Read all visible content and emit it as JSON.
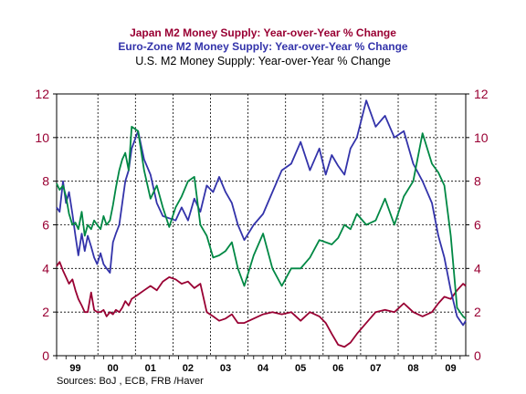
{
  "colors": {
    "japan": "#990033",
    "euro": "#3333aa",
    "us": "#008844",
    "axis_label": "#990033",
    "euro_title": "#3333aa"
  },
  "chart_data": {
    "type": "line",
    "titles": [
      "Japan M2 Money Supply: Year-over-Year % Change",
      "Euro-Zone M2 Money Supply: Year-over-Year % Change",
      "U.S. M2 Money Supply: Year-over-Year % Change"
    ],
    "xlim": [
      1999.0,
      2009.9
    ],
    "ylim": [
      0,
      12
    ],
    "yticks": [
      0,
      2,
      4,
      6,
      8,
      10,
      12
    ],
    "xtick_labels": [
      "99",
      "00",
      "01",
      "02",
      "03",
      "04",
      "05",
      "06",
      "07",
      "08",
      "09"
    ],
    "xtick_positions": [
      1999.5,
      2000.5,
      2001.5,
      2002.5,
      2003.5,
      2004.5,
      2005.5,
      2006.5,
      2007.5,
      2008.5,
      2009.5
    ],
    "vgrid": [
      2000.1,
      2001.1,
      2002.1,
      2003.1,
      2004.1,
      2005.1,
      2006.1,
      2007.1,
      2008.1,
      2009.1
    ],
    "source": "Sources:  BoJ , ECB, FRB /Haver",
    "series": [
      {
        "name": "Japan M2 Money Supply: Year-over-Year % Change",
        "color": "#990033",
        "x": [
          1999.0,
          1999.08,
          1999.17,
          1999.25,
          1999.33,
          1999.42,
          1999.5,
          1999.58,
          1999.67,
          1999.75,
          1999.83,
          1999.92,
          2000.0,
          2000.08,
          2000.17,
          2000.25,
          2000.33,
          2000.42,
          2000.5,
          2000.58,
          2000.67,
          2000.75,
          2000.83,
          2000.92,
          2001.0,
          2001.17,
          2001.33,
          2001.5,
          2001.67,
          2001.83,
          2002.0,
          2002.17,
          2002.33,
          2002.5,
          2002.67,
          2002.83,
          2003.0,
          2003.17,
          2003.33,
          2003.5,
          2003.67,
          2003.83,
          2004.0,
          2004.25,
          2004.5,
          2004.75,
          2005.0,
          2005.25,
          2005.5,
          2005.75,
          2006.0,
          2006.17,
          2006.33,
          2006.5,
          2006.67,
          2006.83,
          2007.0,
          2007.25,
          2007.5,
          2007.75,
          2008.0,
          2008.25,
          2008.5,
          2008.75,
          2009.0,
          2009.17,
          2009.33,
          2009.5,
          2009.67,
          2009.83,
          2009.9
        ],
        "y": [
          4.1,
          4.3,
          3.9,
          3.6,
          3.3,
          3.5,
          3.0,
          2.6,
          2.3,
          2.0,
          2.0,
          2.9,
          2.1,
          2.0,
          2.0,
          2.1,
          1.8,
          2.0,
          1.9,
          2.1,
          2.0,
          2.2,
          2.5,
          2.3,
          2.6,
          2.8,
          3.0,
          3.2,
          3.0,
          3.4,
          3.6,
          3.5,
          3.3,
          3.4,
          3.1,
          3.3,
          2.0,
          1.8,
          1.6,
          1.7,
          1.9,
          1.5,
          1.5,
          1.7,
          1.9,
          2.0,
          1.9,
          2.0,
          1.6,
          2.0,
          1.8,
          1.5,
          1.0,
          0.5,
          0.4,
          0.6,
          1.0,
          1.5,
          2.0,
          2.1,
          2.0,
          2.4,
          2.0,
          1.8,
          2.0,
          2.4,
          2.7,
          2.6,
          3.0,
          3.3,
          3.2
        ]
      },
      {
        "name": "Euro-Zone M2 Money Supply: Year-over-Year % Change",
        "color": "#3333aa",
        "x": [
          1999.0,
          1999.08,
          1999.17,
          1999.25,
          1999.33,
          1999.42,
          1999.5,
          1999.58,
          1999.67,
          1999.75,
          1999.83,
          1999.92,
          2000.0,
          2000.08,
          2000.17,
          2000.25,
          2000.33,
          2000.42,
          2000.5,
          2000.58,
          2000.67,
          2000.75,
          2000.83,
          2000.92,
          2001.0,
          2001.17,
          2001.33,
          2001.5,
          2001.67,
          2001.83,
          2002.0,
          2002.17,
          2002.33,
          2002.5,
          2002.67,
          2002.83,
          2003.0,
          2003.17,
          2003.33,
          2003.5,
          2003.67,
          2003.83,
          2004.0,
          2004.25,
          2004.5,
          2004.75,
          2005.0,
          2005.25,
          2005.5,
          2005.75,
          2006.0,
          2006.17,
          2006.33,
          2006.5,
          2006.67,
          2006.83,
          2007.0,
          2007.25,
          2007.5,
          2007.75,
          2008.0,
          2008.25,
          2008.5,
          2008.75,
          2009.0,
          2009.17,
          2009.33,
          2009.5,
          2009.67,
          2009.83,
          2009.9
        ],
        "y": [
          6.8,
          6.6,
          8.0,
          7.0,
          7.5,
          6.5,
          5.5,
          4.6,
          5.6,
          4.8,
          5.5,
          5.0,
          4.5,
          4.2,
          4.7,
          4.2,
          4.0,
          3.8,
          5.2,
          5.6,
          6.0,
          7.0,
          8.0,
          8.5,
          9.5,
          10.3,
          9.0,
          8.3,
          7.0,
          6.4,
          6.3,
          6.2,
          6.8,
          6.2,
          7.2,
          6.6,
          7.8,
          7.5,
          8.2,
          7.5,
          7.0,
          6.0,
          5.3,
          6.0,
          6.5,
          7.5,
          8.5,
          8.8,
          9.8,
          8.5,
          9.5,
          8.3,
          9.2,
          8.7,
          8.3,
          9.5,
          10.0,
          11.7,
          10.5,
          11.0,
          10.0,
          10.3,
          8.8,
          8.0,
          7.0,
          5.5,
          4.5,
          3.0,
          1.8,
          1.4,
          1.6
        ]
      },
      {
        "name": "U.S. M2 Money Supply: Year-over-Year % Change",
        "color": "#008844",
        "x": [
          1999.0,
          1999.08,
          1999.17,
          1999.25,
          1999.33,
          1999.42,
          1999.5,
          1999.58,
          1999.67,
          1999.75,
          1999.83,
          1999.92,
          2000.0,
          2000.08,
          2000.17,
          2000.25,
          2000.33,
          2000.42,
          2000.5,
          2000.58,
          2000.67,
          2000.75,
          2000.83,
          2000.92,
          2001.0,
          2001.17,
          2001.33,
          2001.5,
          2001.67,
          2001.83,
          2002.0,
          2002.17,
          2002.33,
          2002.5,
          2002.67,
          2002.83,
          2003.0,
          2003.17,
          2003.33,
          2003.5,
          2003.67,
          2003.83,
          2004.0,
          2004.25,
          2004.5,
          2004.75,
          2005.0,
          2005.25,
          2005.5,
          2005.75,
          2006.0,
          2006.17,
          2006.33,
          2006.5,
          2006.67,
          2006.83,
          2007.0,
          2007.25,
          2007.5,
          2007.75,
          2008.0,
          2008.25,
          2008.5,
          2008.75,
          2009.0,
          2009.17,
          2009.33,
          2009.5,
          2009.67,
          2009.83,
          2009.9
        ],
        "y": [
          7.9,
          7.6,
          7.8,
          7.3,
          6.5,
          6.0,
          6.1,
          5.8,
          6.6,
          5.5,
          6.0,
          5.8,
          6.2,
          6.0,
          5.8,
          6.4,
          6.0,
          6.2,
          6.9,
          7.7,
          8.5,
          9.0,
          9.3,
          8.5,
          10.5,
          10.3,
          8.5,
          7.2,
          7.8,
          6.8,
          5.9,
          6.8,
          7.3,
          8.0,
          8.2,
          6.0,
          5.5,
          4.5,
          4.6,
          4.8,
          5.2,
          4.0,
          3.2,
          4.6,
          5.6,
          4.0,
          3.2,
          4.0,
          4.0,
          4.5,
          5.3,
          5.2,
          5.1,
          5.4,
          6.0,
          5.8,
          6.5,
          6.0,
          6.2,
          7.2,
          6.0,
          7.3,
          8.0,
          10.2,
          8.8,
          8.4,
          7.8,
          5.5,
          2.2,
          1.8,
          1.7
        ]
      }
    ]
  }
}
